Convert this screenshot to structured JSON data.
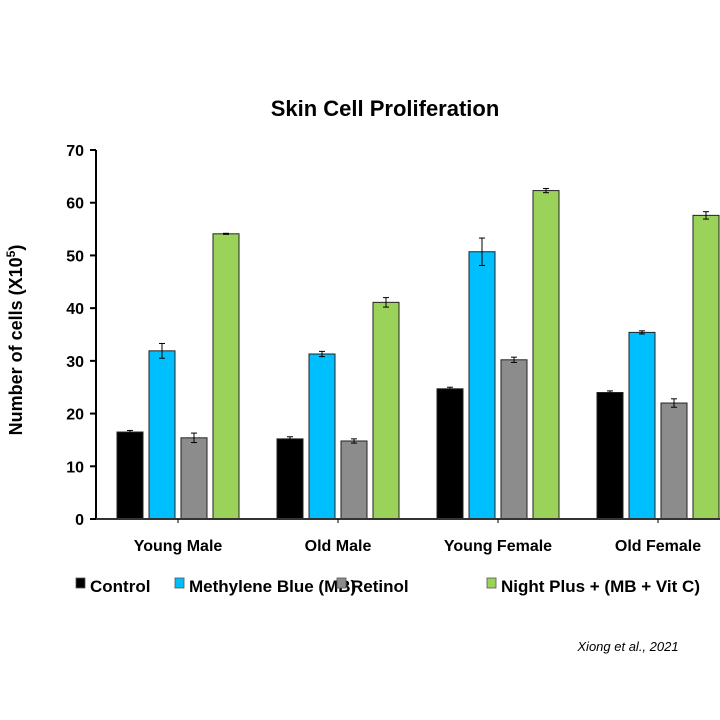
{
  "chart_data": {
    "type": "bar",
    "title": "Skin Cell Proliferation",
    "ylabel": "Number of cells (X10",
    "ylabel_superscript": "5",
    "ylabel_close": ")",
    "xlabel": "",
    "ylim": [
      0,
      70
    ],
    "yticks": [
      "0",
      "10",
      "20",
      "30",
      "40",
      "50",
      "60",
      "70"
    ],
    "grid": false,
    "legend_position": "bottom",
    "categories": [
      "Young Male",
      "Old Male",
      "Young Female",
      "Old Female"
    ],
    "series": [
      {
        "name": "Control",
        "color": "#000000",
        "values": [
          16.5,
          15.2,
          24.7,
          24.0
        ],
        "errors": [
          0.3,
          0.4,
          0.3,
          0.3
        ]
      },
      {
        "name": "Methylene Blue (MB)",
        "color": "#00BFFF",
        "values": [
          31.9,
          31.3,
          50.7,
          35.4
        ],
        "errors": [
          1.4,
          0.5,
          2.6,
          0.3
        ]
      },
      {
        "name": "Retinol",
        "color": "#8C8C8C",
        "values": [
          15.4,
          14.8,
          30.2,
          22.0
        ],
        "errors": [
          0.9,
          0.4,
          0.5,
          0.8
        ]
      },
      {
        "name": "Night Plus + (MB + Vit C)",
        "color": "#9BD35A",
        "values": [
          54.1,
          41.1,
          62.3,
          57.6
        ],
        "errors": [
          0.1,
          0.9,
          0.4,
          0.7
        ]
      }
    ],
    "annotation": "Xiong et al., 2021"
  }
}
